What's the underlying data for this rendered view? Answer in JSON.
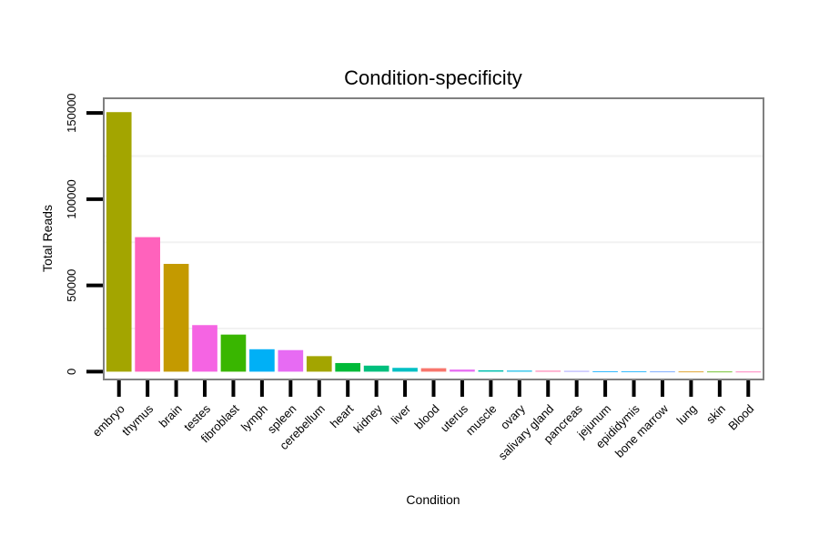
{
  "chart_data": {
    "type": "bar",
    "title": "Condition-specificity",
    "xlabel": "Condition",
    "ylabel": "Total Reads",
    "ylim": [
      -4000,
      158000
    ],
    "yticks": [
      0,
      50000,
      100000,
      150000
    ],
    "ytick_labels": [
      "0",
      "50000",
      "100000",
      "150000"
    ],
    "grid": true,
    "categories": [
      "embryo",
      "thymus",
      "brain",
      "testes",
      "fibroblast",
      "lymph",
      "spleen",
      "cerebellum",
      "heart",
      "kidney",
      "liver",
      "blood",
      "uterus",
      "muscle",
      "ovary",
      "salivary gland",
      "pancreas",
      "jejunum",
      "epididymis",
      "bone marrow",
      "lung",
      "skin",
      "Blood"
    ],
    "values": [
      150500,
      78000,
      62500,
      27000,
      21500,
      13000,
      12500,
      9000,
      5000,
      3500,
      2200,
      2000,
      1200,
      800,
      600,
      500,
      400,
      150,
      100,
      80,
      60,
      40,
      20
    ],
    "colors": [
      "#A3A500",
      "#FF62BC",
      "#C49A00",
      "#F564E3",
      "#39B600",
      "#00B0F6",
      "#E76BF3",
      "#A3A500",
      "#00BA38",
      "#00BF7D",
      "#00BFC4",
      "#F8766D",
      "#E76BF3",
      "#00C0AF",
      "#00B8E7",
      "#FF67A4",
      "#9590FF",
      "#00A9FF",
      "#00ABFD",
      "#619CFF",
      "#D89000",
      "#53B400",
      "#FF64B0"
    ]
  }
}
